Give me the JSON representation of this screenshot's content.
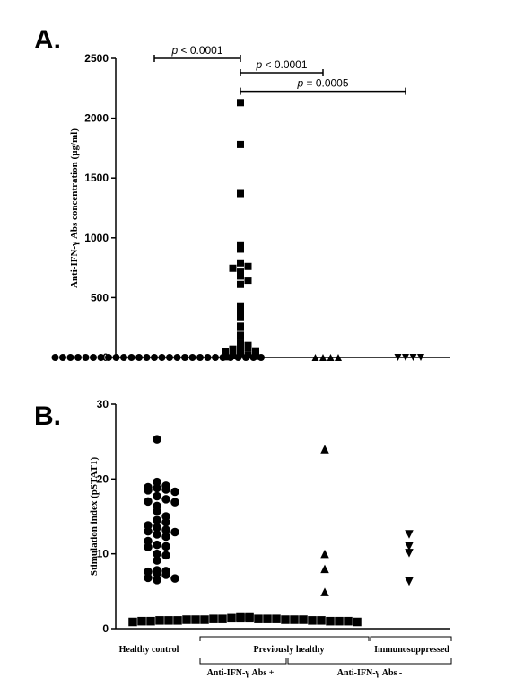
{
  "chart_data": [
    {
      "panel": "A.",
      "type": "scatter",
      "ylabel": "Anti-IFN-γ Abs concentration (µg/ml)",
      "ylim": [
        0,
        2500
      ],
      "yticks": [
        0,
        500,
        1000,
        1500,
        2000,
        2500
      ],
      "groups": [
        {
          "marker": "circle",
          "values": [
            0,
            0,
            0,
            0,
            0,
            0,
            0,
            0,
            0,
            0,
            0,
            0,
            0,
            0,
            0,
            0,
            0,
            0,
            0,
            0,
            0,
            0,
            0,
            0,
            0,
            0,
            0,
            0
          ]
        },
        {
          "marker": "square",
          "values": [
            2130,
            1780,
            1370,
            940,
            905,
            790,
            760,
            745,
            720,
            680,
            645,
            610,
            430,
            405,
            340,
            260,
            250,
            185,
            120,
            100,
            90,
            80,
            70,
            55,
            45,
            30,
            20,
            15,
            10,
            5
          ]
        },
        {
          "marker": "triangle-up",
          "values": [
            0,
            0,
            0,
            0
          ]
        },
        {
          "marker": "triangle-down",
          "values": [
            0,
            0,
            0,
            0
          ]
        }
      ],
      "annotations": [
        {
          "from": 0,
          "to": 1,
          "y": 2500,
          "p_label": "p",
          "text": " < 0.0001"
        },
        {
          "from": 1,
          "to": 2,
          "y": 2380,
          "p_label": "p",
          "text": " < 0.0001"
        },
        {
          "from": 1,
          "to": 3,
          "y": 2225,
          "p_label": "p",
          "text": " = 0.0005"
        }
      ]
    },
    {
      "panel": "B.",
      "type": "scatter",
      "ylabel": "Stimulation index (pSTAT1)",
      "ylim": [
        0,
        30
      ],
      "yticks": [
        0,
        10,
        20,
        30
      ],
      "groups": [
        {
          "marker": "circle",
          "values": [
            25.3,
            19.6,
            19.1,
            18.9,
            18.8,
            18.6,
            18.5,
            18.3,
            17.7,
            17.3,
            17.0,
            16.9,
            16.4,
            15.7,
            15.0,
            14.5,
            14.2,
            13.8,
            13.5,
            13.2,
            13.0,
            12.9,
            12.6,
            12.3,
            11.7,
            11.2,
            11.0,
            10.9,
            10.0,
            9.8,
            9.1,
            7.8,
            7.7,
            7.6,
            7.4,
            7.2,
            6.8,
            6.7,
            6.5
          ]
        },
        {
          "marker": "square",
          "values": [
            1.5,
            1.4,
            1.4,
            1.3,
            1.3,
            1.2,
            1.2,
            1.1,
            1.1,
            1.0,
            1.0,
            1.0,
            0.9,
            0.9,
            1.1,
            1.2,
            1.3,
            1.2,
            1.0,
            1.1,
            1.4,
            1.3,
            1.2,
            1.0,
            1.1,
            1.5,
            1.2,
            1.3
          ]
        },
        {
          "marker": "triangle-up",
          "values": [
            24.0,
            10.0,
            8.0,
            4.9
          ]
        },
        {
          "marker": "triangle-down",
          "values": [
            12.6,
            11.0,
            10.1,
            6.3
          ]
        }
      ],
      "category_labels": [
        {
          "text": "Healthy control",
          "row": 1
        },
        {
          "text": "Previously healthy",
          "row": 1
        },
        {
          "text": "Immunosuppressed",
          "row": 1
        },
        {
          "text": "Anti-IFN-γ Abs +",
          "row": 2
        },
        {
          "text": "Anti-IFN-γ Abs -",
          "row": 2
        }
      ]
    }
  ]
}
